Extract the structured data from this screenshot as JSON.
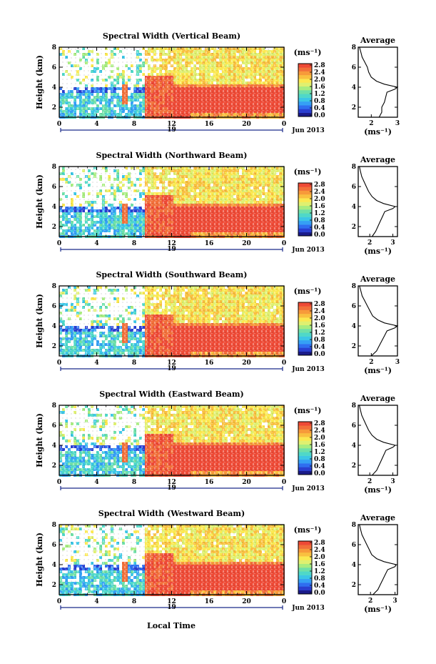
{
  "xlabel": "Local Time",
  "date_label": "19",
  "month_label": "Jun 2013",
  "colorbar_unit": "(ms⁻¹)",
  "avg_unit": "(ms⁻¹)",
  "avg_title": "Average",
  "ylabel": "Height (km)",
  "palette": [
    "#1b1b8a",
    "#2a3fd0",
    "#2f6ef0",
    "#35a0f5",
    "#3cc6e6",
    "#4fd8c8",
    "#6fe0a8",
    "#a8ec80",
    "#dff070",
    "#fbe850",
    "#f9c040",
    "#f79a3a",
    "#f2703a",
    "#ee4a36"
  ],
  "chart_data": [
    {
      "type": "heatmap",
      "title": "Spectral Width (Vertical Beam)",
      "x_ticks": [
        "0",
        "4",
        "8",
        "12",
        "16",
        "20",
        "0"
      ],
      "y_ticks": [
        "2",
        "4",
        "6",
        "8"
      ],
      "xlim": [
        0,
        24
      ],
      "ylim": [
        1,
        8
      ],
      "colorbar_ticks": [
        "2.8",
        "2.4",
        "2.0",
        "1.6",
        "1.2",
        "0.8",
        "0.4",
        "0.0"
      ],
      "colorbar_range": [
        0.0,
        2.8
      ],
      "average_profile": {
        "x_ticks": [
          "2",
          "3"
        ],
        "y_ticks": [
          "2",
          "4",
          "6",
          "8"
        ],
        "xlim": [
          1.5,
          3.0
        ],
        "height_km": [
          1.0,
          1.5,
          2.0,
          2.5,
          3.0,
          3.5,
          3.8,
          4.0,
          4.3,
          4.6,
          5.0,
          5.5,
          6.0,
          6.5,
          7.0,
          7.5,
          8.0
        ],
        "width_ms": [
          2.3,
          2.4,
          2.4,
          2.5,
          2.55,
          2.6,
          2.9,
          3.0,
          2.5,
          2.2,
          2.0,
          1.9,
          1.85,
          1.75,
          1.65,
          1.6,
          1.55
        ]
      }
    },
    {
      "type": "heatmap",
      "title": "Spectral Width (Northward Beam)",
      "x_ticks": [
        "0",
        "4",
        "8",
        "12",
        "16",
        "20",
        "0"
      ],
      "y_ticks": [
        "2",
        "4",
        "6",
        "8"
      ],
      "xlim": [
        0,
        24
      ],
      "ylim": [
        1,
        8
      ],
      "colorbar_ticks": [
        "2.8",
        "2.4",
        "2.0",
        "1.6",
        "1.2",
        "0.8",
        "0.4",
        "0.0"
      ],
      "colorbar_range": [
        0.0,
        2.8
      ],
      "average_profile": {
        "x_ticks": [
          "2",
          "3"
        ],
        "y_ticks": [
          "2",
          "4",
          "6",
          "8"
        ],
        "xlim": [
          1.5,
          3.2
        ],
        "height_km": [
          1.0,
          1.5,
          2.0,
          2.5,
          3.0,
          3.5,
          3.8,
          4.0,
          4.3,
          4.6,
          5.0,
          5.5,
          6.0,
          6.5,
          7.0,
          7.5,
          8.0
        ],
        "width_ms": [
          2.1,
          2.25,
          2.35,
          2.45,
          2.55,
          2.65,
          3.0,
          3.1,
          2.6,
          2.3,
          2.1,
          1.95,
          1.85,
          1.75,
          1.65,
          1.6,
          1.55
        ]
      }
    },
    {
      "type": "heatmap",
      "title": "Spectral Width (Southward Beam)",
      "x_ticks": [
        "0",
        "4",
        "8",
        "12",
        "16",
        "20",
        "0"
      ],
      "y_ticks": [
        "2",
        "4",
        "6",
        "8"
      ],
      "xlim": [
        0,
        24
      ],
      "ylim": [
        1,
        8
      ],
      "colorbar_ticks": [
        "2.8",
        "2.4",
        "2.0",
        "1.6",
        "1.2",
        "0.8",
        "0.4",
        "0.0"
      ],
      "colorbar_range": [
        0.0,
        2.8
      ],
      "average_profile": {
        "x_ticks": [
          "2",
          "3"
        ],
        "y_ticks": [
          "2",
          "4",
          "6",
          "8"
        ],
        "xlim": [
          1.5,
          3.0
        ],
        "height_km": [
          1.0,
          1.5,
          2.0,
          2.5,
          3.0,
          3.5,
          3.8,
          4.0,
          4.3,
          4.6,
          5.0,
          5.5,
          6.0,
          6.5,
          7.0,
          7.5,
          8.0
        ],
        "width_ms": [
          2.0,
          2.2,
          2.3,
          2.4,
          2.5,
          2.6,
          2.9,
          3.0,
          2.5,
          2.25,
          2.05,
          1.95,
          1.85,
          1.75,
          1.65,
          1.6,
          1.55
        ]
      }
    },
    {
      "type": "heatmap",
      "title": "Spectral Width (Eastward Beam)",
      "x_ticks": [
        "0",
        "4",
        "8",
        "12",
        "16",
        "20",
        "0"
      ],
      "y_ticks": [
        "2",
        "4",
        "6",
        "8"
      ],
      "xlim": [
        0,
        24
      ],
      "ylim": [
        1,
        8
      ],
      "colorbar_ticks": [
        "2.8",
        "2.4",
        "2.0",
        "1.6",
        "1.2",
        "0.8",
        "0.4",
        "0.0"
      ],
      "colorbar_range": [
        0.0,
        2.8
      ],
      "average_profile": {
        "x_ticks": [
          "2",
          "3"
        ],
        "y_ticks": [
          "2",
          "4",
          "6",
          "8"
        ],
        "xlim": [
          1.5,
          3.2
        ],
        "height_km": [
          1.0,
          1.5,
          2.0,
          2.5,
          3.0,
          3.5,
          3.8,
          4.0,
          4.3,
          4.6,
          5.0,
          5.5,
          6.0,
          6.5,
          7.0,
          7.5,
          8.0
        ],
        "width_ms": [
          2.1,
          2.3,
          2.4,
          2.5,
          2.6,
          2.7,
          3.0,
          3.1,
          2.6,
          2.3,
          2.1,
          1.95,
          1.85,
          1.75,
          1.65,
          1.6,
          1.55
        ]
      }
    },
    {
      "type": "heatmap",
      "title": "Spectral Width (Westward Beam)",
      "x_ticks": [
        "0",
        "4",
        "8",
        "12",
        "16",
        "20",
        "0"
      ],
      "y_ticks": [
        "2",
        "4",
        "6",
        "8"
      ],
      "xlim": [
        0,
        24
      ],
      "ylim": [
        1,
        8
      ],
      "colorbar_ticks": [
        "2.8",
        "2.4",
        "2.0",
        "1.6",
        "1.2",
        "0.8",
        "0.4",
        "0.0"
      ],
      "colorbar_range": [
        0.0,
        2.8
      ],
      "average_profile": {
        "x_ticks": [
          "2",
          "3"
        ],
        "y_ticks": [
          "2",
          "4",
          "6",
          "8"
        ],
        "xlim": [
          1.5,
          3.1
        ],
        "height_km": [
          1.0,
          1.5,
          2.0,
          2.5,
          3.0,
          3.5,
          3.8,
          4.0,
          4.3,
          4.6,
          5.0,
          5.5,
          6.0,
          6.5,
          7.0,
          7.5,
          8.0
        ],
        "width_ms": [
          2.1,
          2.3,
          2.4,
          2.5,
          2.6,
          2.7,
          3.0,
          3.05,
          2.55,
          2.25,
          2.05,
          1.95,
          1.85,
          1.75,
          1.65,
          1.6,
          1.55
        ]
      }
    }
  ]
}
